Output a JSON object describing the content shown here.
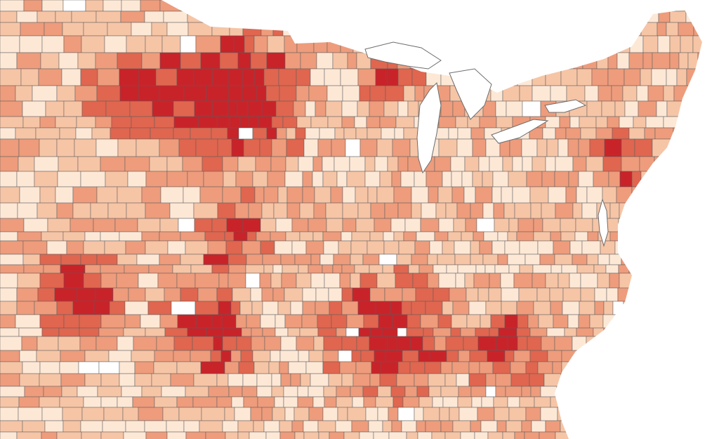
{
  "map": {
    "type": "choropleth",
    "region": "contiguous-united-states",
    "unit": "county",
    "palette": [
      "#ffffff",
      "#fde8d6",
      "#f6c5a6",
      "#ee9c7c",
      "#e0664f",
      "#c9232a"
    ],
    "border_color": "#5a5a5a",
    "water_color": "#ffffff"
  }
}
